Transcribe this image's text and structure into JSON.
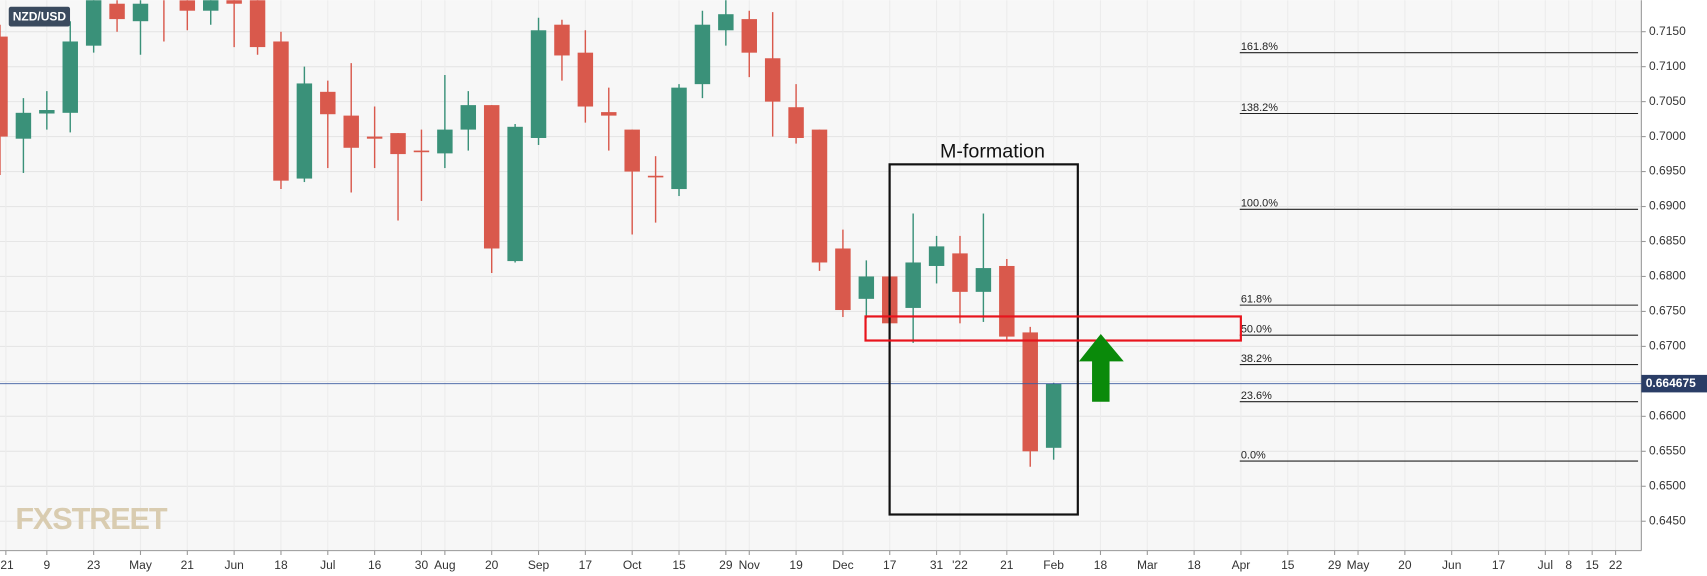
{
  "chart_data": {
    "type": "candlestick",
    "symbol": "NZD/USD",
    "watermark": "FXSTREET",
    "annotation": "M-formation",
    "x": [
      0,
      1,
      2,
      3,
      4,
      5,
      6,
      7,
      8,
      9,
      10,
      11,
      12,
      13,
      14,
      15,
      16,
      17,
      18,
      19,
      20,
      21,
      22,
      23,
      24,
      25,
      26,
      27,
      28,
      29,
      30,
      31,
      32,
      33,
      34,
      35,
      36,
      37,
      38,
      39,
      40,
      41,
      42,
      43,
      44,
      45
    ],
    "open": [
      0.7143,
      0.6997,
      0.7033,
      0.7034,
      0.713,
      0.719,
      0.7165,
      0.721,
      0.7195,
      0.718,
      0.72,
      0.721,
      0.7136,
      0.694,
      0.7064,
      0.703,
      0.7,
      0.7005,
      0.698,
      0.6976,
      0.701,
      0.7045,
      0.6822,
      0.6998,
      0.716,
      0.712,
      0.7035,
      0.701,
      0.6944,
      0.6925,
      0.7075,
      0.7152,
      0.7168,
      0.7112,
      0.7042,
      0.701,
      0.684,
      0.6768,
      0.68,
      0.6755,
      0.6815,
      0.6833,
      0.6778,
      0.6815,
      0.672,
      0.6555
    ],
    "high": [
      0.716,
      0.7055,
      0.7065,
      0.7165,
      0.723,
      0.721,
      0.721,
      0.722,
      0.7205,
      0.721,
      0.7215,
      0.722,
      0.715,
      0.71,
      0.708,
      0.7105,
      0.7043,
      0.7005,
      0.701,
      0.7088,
      0.7065,
      0.7045,
      0.7018,
      0.717,
      0.7167,
      0.7152,
      0.707,
      0.701,
      0.6972,
      0.7075,
      0.718,
      0.72,
      0.718,
      0.7178,
      0.7075,
      0.701,
      0.6867,
      0.6823,
      0.68,
      0.689,
      0.6858,
      0.6858,
      0.689,
      0.6825,
      0.6728,
      0.6648
    ],
    "low": [
      0.6945,
      0.6948,
      0.701,
      0.7006,
      0.712,
      0.715,
      0.7117,
      0.7136,
      0.7152,
      0.716,
      0.7128,
      0.7117,
      0.6925,
      0.6935,
      0.6955,
      0.692,
      0.6955,
      0.688,
      0.6908,
      0.6955,
      0.698,
      0.6805,
      0.682,
      0.6988,
      0.708,
      0.702,
      0.698,
      0.686,
      0.6877,
      0.6915,
      0.7055,
      0.713,
      0.7085,
      0.7,
      0.699,
      0.6808,
      0.6742,
      0.674,
      0.6725,
      0.6705,
      0.679,
      0.6733,
      0.6735,
      0.671,
      0.6528,
      0.6538
    ],
    "close": [
      0.7,
      0.7034,
      0.7038,
      0.7136,
      0.72,
      0.7168,
      0.719,
      0.72,
      0.718,
      0.72,
      0.719,
      0.7128,
      0.6937,
      0.7076,
      0.7032,
      0.6984,
      0.6997,
      0.6975,
      0.6978,
      0.701,
      0.7045,
      0.684,
      0.7014,
      0.7152,
      0.7116,
      0.7043,
      0.703,
      0.695,
      0.6942,
      0.707,
      0.716,
      0.7175,
      0.712,
      0.705,
      0.6998,
      0.682,
      0.6752,
      0.68,
      0.6733,
      0.682,
      0.6843,
      0.6778,
      0.6812,
      0.6714,
      0.655,
      0.6647
    ],
    "up_color": "#3a9179",
    "down_color": "#d9594c",
    "current_price": 0.664675,
    "fib_levels": [
      {
        "value": 0.712,
        "label": "161.8%"
      },
      {
        "value": 0.7033,
        "label": "138.2%"
      },
      {
        "value": 0.6896,
        "label": "100.0%"
      },
      {
        "value": 0.6759,
        "label": "61.8%"
      },
      {
        "value": 0.6716,
        "label": "50.0%"
      },
      {
        "value": 0.6674,
        "label": "38.2%"
      },
      {
        "value": 0.6621,
        "label": "23.6%"
      },
      {
        "value": 0.6536,
        "label": "0.0%"
      }
    ],
    "xlim": [
      0,
      70.1
    ],
    "ylim": [
      0.6408,
      0.7195
    ],
    "yticks": [
      {
        "value": 0.645,
        "label": "0.6450"
      },
      {
        "value": 0.65,
        "label": "0.6500"
      },
      {
        "value": 0.655,
        "label": "0.6550"
      },
      {
        "value": 0.66,
        "label": "0.6600"
      },
      {
        "value": 0.665,
        "label": "0.6650"
      },
      {
        "value": 0.67,
        "label": "0.6700"
      },
      {
        "value": 0.675,
        "label": "0.6750"
      },
      {
        "value": 0.68,
        "label": "0.6800"
      },
      {
        "value": 0.685,
        "label": "0.6850"
      },
      {
        "value": 0.69,
        "label": "0.6900"
      },
      {
        "value": 0.695,
        "label": "0.6950"
      },
      {
        "value": 0.7,
        "label": "0.7000"
      },
      {
        "value": 0.705,
        "label": "0.7050"
      },
      {
        "value": 0.71,
        "label": "0.7100"
      },
      {
        "value": 0.715,
        "label": "0.7150"
      }
    ],
    "xticks": [
      {
        "value": 0.25,
        "label": "'21"
      },
      {
        "value": 2,
        "label": "9"
      },
      {
        "value": 4,
        "label": "23"
      },
      {
        "value": 6,
        "label": "May"
      },
      {
        "value": 8,
        "label": "21"
      },
      {
        "value": 10,
        "label": "Jun"
      },
      {
        "value": 12,
        "label": "18"
      },
      {
        "value": 14,
        "label": "Jul"
      },
      {
        "value": 16,
        "label": "16"
      },
      {
        "value": 18,
        "label": "30"
      },
      {
        "value": 19,
        "label": "Aug"
      },
      {
        "value": 21,
        "label": "20"
      },
      {
        "value": 23,
        "label": "Sep"
      },
      {
        "value": 25,
        "label": "17"
      },
      {
        "value": 27,
        "label": "Oct"
      },
      {
        "value": 29,
        "label": "15"
      },
      {
        "value": 31,
        "label": "29"
      },
      {
        "value": 32,
        "label": "Nov"
      },
      {
        "value": 34,
        "label": "19"
      },
      {
        "value": 36,
        "label": "Dec"
      },
      {
        "value": 38,
        "label": "17"
      },
      {
        "value": 40,
        "label": "31"
      },
      {
        "value": 41,
        "label": "'22"
      },
      {
        "value": 43,
        "label": "21"
      },
      {
        "value": 45,
        "label": "Feb"
      },
      {
        "value": 47,
        "label": "18"
      },
      {
        "value": 49,
        "label": "Mar"
      },
      {
        "value": 51,
        "label": "18"
      },
      {
        "value": 53,
        "label": "Apr"
      },
      {
        "value": 55,
        "label": "15"
      },
      {
        "value": 57,
        "label": "29"
      },
      {
        "value": 58,
        "label": "May"
      },
      {
        "value": 60,
        "label": "20"
      },
      {
        "value": 62,
        "label": "Jun"
      },
      {
        "value": 64,
        "label": "17"
      },
      {
        "value": 66,
        "label": "Jul"
      },
      {
        "value": 67,
        "label": "8"
      },
      {
        "value": 68,
        "label": "15"
      },
      {
        "value": 69,
        "label": "22"
      }
    ],
    "grid": true
  }
}
